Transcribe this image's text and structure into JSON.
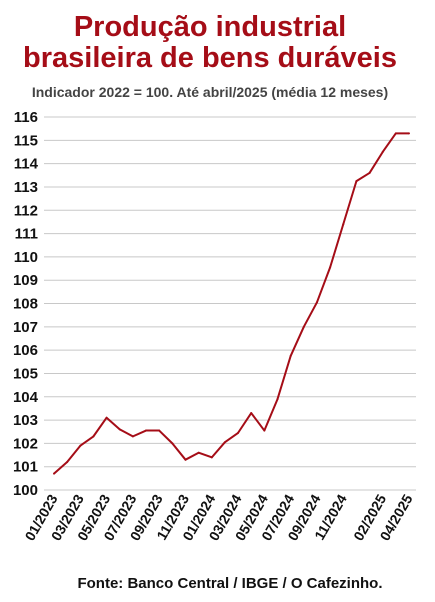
{
  "header": {
    "title_line1": "Produção industrial",
    "title_line2": "brasileira de bens duráveis",
    "subtitle": "Indicador 2022 = 100. Até abril/2025 (média 12 meses)"
  },
  "footer": {
    "source": "Fonte: Banco Central / IBGE / O Cafezinho."
  },
  "colors": {
    "title": "#a50d17",
    "line": "#a50d17",
    "grid": "#c8c8c8"
  },
  "chart_data": {
    "type": "line",
    "title": "Produção industrial brasileira de bens duráveis",
    "subtitle": "Indicador 2022 = 100. Até abril/2025 (média 12 meses)",
    "xlabel": "",
    "ylabel": "",
    "ylim": [
      100,
      116
    ],
    "y_ticks": [
      100,
      101,
      102,
      103,
      104,
      105,
      106,
      107,
      108,
      109,
      110,
      111,
      112,
      113,
      114,
      115,
      116
    ],
    "x_tick_labels": [
      "01/2023",
      "03/2023",
      "05/2023",
      "07/2023",
      "09/2023",
      "11/2023",
      "01/2024",
      "03/2024",
      "05/2024",
      "07/2024",
      "09/2024",
      "11/2024",
      "02/2025",
      "04/2025"
    ],
    "grid": true,
    "legend": "none",
    "series": [
      {
        "x": [
          "01/2023",
          "02/2023",
          "03/2023",
          "04/2023",
          "05/2023",
          "06/2023",
          "07/2023",
          "08/2023",
          "09/2023",
          "10/2023",
          "11/2023",
          "12/2023",
          "01/2024",
          "02/2024",
          "03/2024",
          "04/2024",
          "05/2024",
          "06/2024",
          "07/2024",
          "08/2024",
          "09/2024",
          "10/2024",
          "11/2024",
          "12/2024",
          "01/2025",
          "02/2025",
          "03/2025",
          "04/2025"
        ],
        "values": [
          100.7,
          101.2,
          101.9,
          102.3,
          103.1,
          102.6,
          102.3,
          102.55,
          102.55,
          102.0,
          101.3,
          101.6,
          101.4,
          102.05,
          102.45,
          103.3,
          102.55,
          103.9,
          105.75,
          107.0,
          108.05,
          109.55,
          111.4,
          113.25,
          113.6,
          114.5,
          115.3,
          115.3
        ]
      }
    ]
  }
}
